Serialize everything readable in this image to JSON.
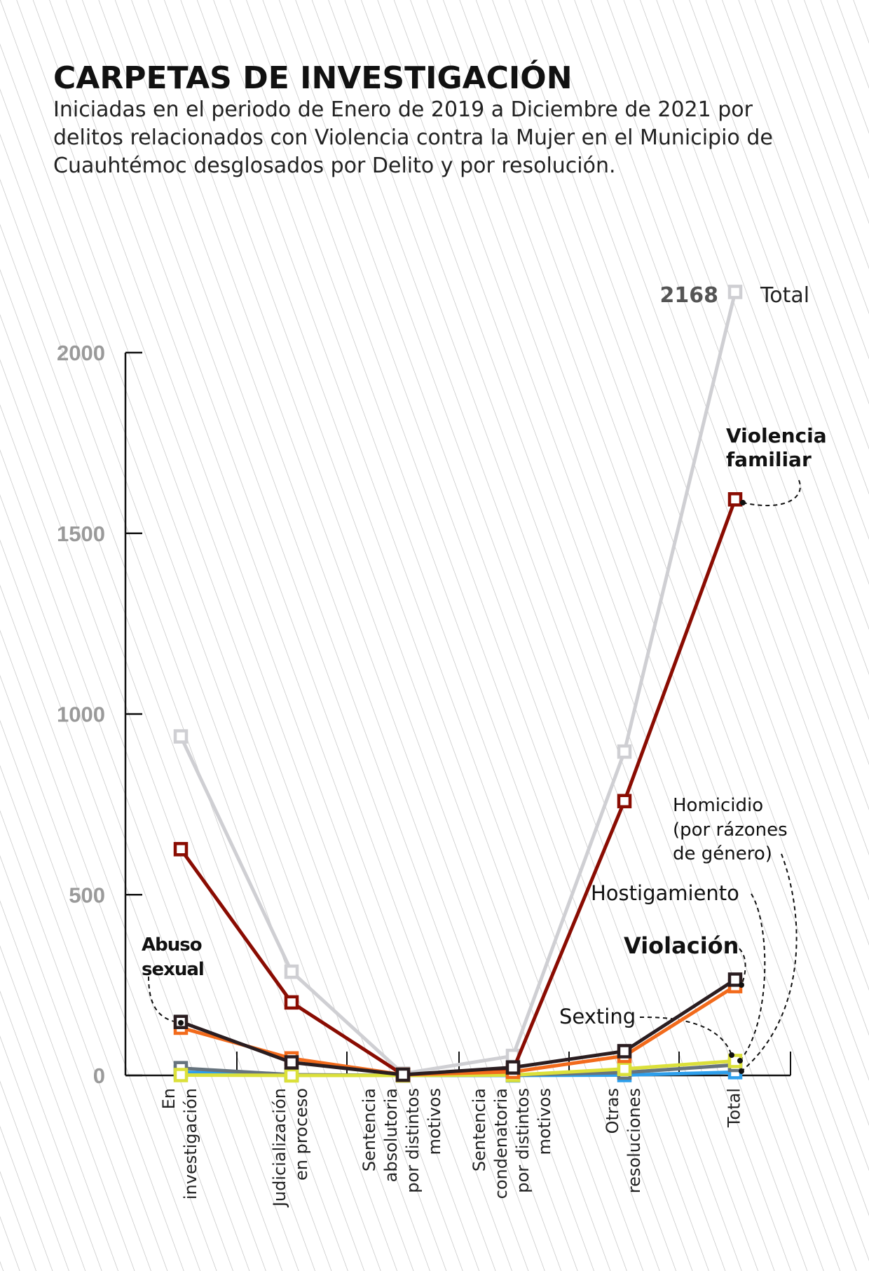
{
  "title": "CARPETAS DE INVESTIGACIÓN",
  "subtitle": [
    "Iniciadas en el periodo de Enero de 2019 a Diciembre de 2021 por",
    "delitos relacionados con Violencia contra la Mujer en el Municipio de",
    "Cuauhtémoc desglosados por Delito y por resolución."
  ],
  "chart_data": {
    "type": "line",
    "title": "CARPETAS DE INVESTIGACIÓN",
    "xlabel": "",
    "ylabel": "",
    "ylim": [
      0,
      2000
    ],
    "yticks": [
      "0",
      "500",
      "1000",
      "1500",
      "2000"
    ],
    "ytick_values": [
      0,
      500,
      1000,
      1500,
      2000
    ],
    "categories": [
      [
        "En",
        "investigación"
      ],
      [
        "Judicialización",
        "en proceso"
      ],
      [
        "Sentencia",
        "absolutoria",
        "por distintos",
        "motivos"
      ],
      [
        "Sentencia",
        "condenatoria",
        "por distintos",
        "motivos"
      ],
      [
        "Otras",
        "resoluciones"
      ],
      [
        "Total"
      ]
    ],
    "series": [
      {
        "name": "Total",
        "color": "#cfcfd3",
        "values": [
          938,
          287,
          5,
          54,
          896,
          2168
        ]
      },
      {
        "name": "Violencia familiar",
        "color": "#8a0c02",
        "values": [
          626,
          202,
          2,
          15,
          759,
          1594
        ]
      },
      {
        "name": "Abuso sexual",
        "color": "#f26a1b",
        "values": [
          132,
          47,
          2,
          10,
          54,
          247
        ]
      },
      {
        "name": "Violación",
        "color": "#2a1d20",
        "values": [
          148,
          36,
          2,
          22,
          67,
          265
        ]
      },
      {
        "name": "Sexting",
        "color": "#dbe03a",
        "values": [
          1,
          0,
          0,
          1,
          18,
          40
        ]
      },
      {
        "name": "Hostigamiento",
        "color": "#66737d",
        "values": [
          20,
          2,
          0,
          1,
          8,
          29
        ]
      },
      {
        "name": "Homicidio (por rázones de género)",
        "color": "#2d9fec",
        "values": [
          9,
          1,
          0,
          0,
          1,
          9
        ]
      }
    ],
    "annotations": {
      "total_value": "2168",
      "total_label": "Total",
      "violencia_familiar": [
        "Violencia",
        "familiar"
      ],
      "abuso_sexual": [
        "Abuso",
        "sexual"
      ],
      "homicidio": [
        "Homicidio",
        "(por rázones",
        "de género)"
      ],
      "hostigamiento": "Hostigamiento",
      "violacion": "Violación",
      "sexting": "Sexting"
    },
    "grid": false,
    "legend": "direct-labels"
  }
}
